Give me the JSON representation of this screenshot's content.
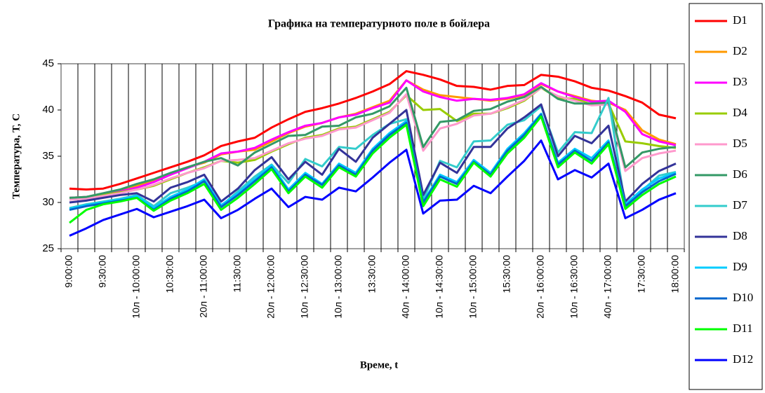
{
  "chart_data": {
    "type": "line",
    "title": "Графика на температурното поле в бойлера",
    "x_label": "Време, t",
    "y_label": "Температура, T, C",
    "categories": [
      "9:00:00",
      null,
      "9:30:00",
      null,
      "10л - 10:00:00",
      null,
      "10:30:00",
      null,
      "20л - 11:00:00",
      null,
      "11:30:00",
      null,
      "20л - 12:00:00",
      null,
      "10л - 12:30:00",
      null,
      "10л - 13:00:00",
      null,
      "13:30:00",
      null,
      "40л - 14:00:00",
      null,
      "10л - 14:30:00",
      null,
      "10л - 15:00:00",
      null,
      "15:30:00",
      null,
      "20л - 16:00:00",
      null,
      "10л - 16:30:00",
      null,
      "40л - 17:00:00",
      null,
      "17:30:00",
      null,
      "18:00:00"
    ],
    "ylim": [
      25,
      45
    ],
    "yticks": [
      25,
      30,
      35,
      40,
      45
    ],
    "series": [
      {
        "name": "D1",
        "color": "#ff0000",
        "values": [
          31.5,
          31.4,
          31.5,
          32,
          32.6,
          33.2,
          33.8,
          34.4,
          35.1,
          36.1,
          36.6,
          37,
          38.1,
          39,
          39.8,
          40.2,
          40.7,
          41.3,
          42,
          42.8,
          44.2,
          43.8,
          43.3,
          42.6,
          42.5,
          42.2,
          42.6,
          42.7,
          43.8,
          43.6,
          43.1,
          42.4,
          42.1,
          41.5,
          40.8,
          39.5,
          39.1
        ]
      },
      {
        "name": "D2",
        "color": "#ff9900",
        "values": [
          30.5,
          30.6,
          30.9,
          31.3,
          31.8,
          32.4,
          33,
          33.8,
          34.3,
          35.2,
          35.5,
          35.7,
          36.6,
          37.5,
          38.2,
          38.6,
          39.2,
          39.6,
          40.3,
          41,
          43.2,
          42.2,
          41.6,
          41.4,
          41.2,
          41,
          41.2,
          41.6,
          42.8,
          42,
          41.5,
          41,
          40.8,
          40,
          37.8,
          36.8,
          36.3
        ]
      },
      {
        "name": "D3",
        "color": "#ff00ff",
        "values": [
          30.5,
          30.6,
          30.8,
          31.2,
          31.6,
          32.2,
          33,
          33.7,
          34.4,
          35.3,
          35.5,
          35.9,
          36.8,
          37.6,
          38.3,
          38.6,
          39.2,
          39.5,
          40.2,
          40.8,
          43.2,
          42,
          41.4,
          41,
          41.2,
          41.1,
          41.3,
          41.7,
          42.9,
          42,
          41.4,
          40.9,
          41,
          39.8,
          37.4,
          36.6,
          36.2
        ]
      },
      {
        "name": "D4",
        "color": "#99cc00",
        "values": [
          30.4,
          30.5,
          30.8,
          31.1,
          31.4,
          31.8,
          32.5,
          33.2,
          33.8,
          34.5,
          34.3,
          34.6,
          35.5,
          36.3,
          37,
          37.3,
          38,
          38.2,
          39,
          39.8,
          41.6,
          40,
          40.1,
          38.8,
          39.6,
          39.6,
          40.2,
          41,
          42.4,
          41.3,
          41.2,
          40.6,
          40.7,
          36.6,
          36.4,
          36.1,
          35.9
        ]
      },
      {
        "name": "D5",
        "color": "#ff99cc",
        "values": [
          30.3,
          30.4,
          30.7,
          31,
          31.4,
          31.9,
          32.6,
          33.2,
          33.7,
          34.5,
          34.6,
          34.8,
          35.6,
          36.4,
          36.9,
          37.2,
          37.9,
          38.1,
          38.9,
          39.7,
          41.7,
          35.6,
          38,
          38.5,
          39.4,
          39.6,
          40.3,
          41.1,
          42.4,
          41.5,
          41,
          40.5,
          40.6,
          33.4,
          34.8,
          35.3,
          35.6
        ]
      },
      {
        "name": "D6",
        "color": "#339966",
        "values": [
          30.5,
          30.6,
          31,
          31.4,
          32,
          32.5,
          33.2,
          33.8,
          34.4,
          34.8,
          34,
          35.4,
          36.3,
          37.2,
          37.3,
          38.2,
          38.3,
          39.2,
          39.6,
          40.4,
          42.4,
          36,
          38.7,
          38.9,
          39.9,
          40.1,
          40.9,
          41.4,
          42.5,
          41.2,
          40.7,
          40.7,
          40.8,
          33.8,
          35.4,
          35.8,
          36
        ]
      },
      {
        "name": "D7",
        "color": "#33cccc",
        "values": [
          29.4,
          29.8,
          30.1,
          30.4,
          30.8,
          29.6,
          31,
          31.6,
          32.3,
          29.6,
          31.2,
          32.8,
          34.1,
          32.1,
          34.7,
          33.9,
          36,
          35.8,
          37.3,
          38.5,
          39,
          30.3,
          34.5,
          33.8,
          36.6,
          36.7,
          38.4,
          38.9,
          40.4,
          35.4,
          37.6,
          37.5,
          41.3,
          29.5,
          31.3,
          32.9,
          33.3
        ]
      },
      {
        "name": "D8",
        "color": "#333399",
        "values": [
          30,
          30.2,
          30.5,
          30.8,
          31,
          30.1,
          31.6,
          32.2,
          33,
          30.1,
          31.5,
          33.5,
          34.9,
          32.5,
          34.4,
          33,
          35.8,
          34.4,
          37,
          38.5,
          40,
          30.8,
          34.3,
          33.2,
          36,
          36,
          38,
          39.2,
          40.6,
          35,
          37.2,
          36.4,
          38.3,
          30.1,
          32,
          33.4,
          34.2
        ]
      },
      {
        "name": "D9",
        "color": "#00ccff",
        "values": [
          29.3,
          29.7,
          30,
          30.3,
          30.7,
          29.4,
          30.6,
          31.4,
          32.5,
          29.7,
          31,
          32.5,
          34,
          31.4,
          33.2,
          32,
          34.2,
          33.2,
          35.8,
          37.5,
          38.8,
          30.1,
          33,
          32.2,
          34.6,
          33.2,
          35.8,
          37.5,
          39.6,
          34.3,
          35.8,
          34.8,
          36.7,
          29.8,
          31.4,
          32.6,
          33.2
        ]
      },
      {
        "name": "D10",
        "color": "#0066cc",
        "values": [
          29.2,
          29.6,
          29.9,
          30.2,
          30.5,
          29.2,
          30.4,
          31.2,
          32.3,
          29.5,
          30.8,
          32.3,
          33.8,
          31.2,
          33,
          31.9,
          34,
          33,
          35.6,
          37.3,
          38.6,
          30,
          32.8,
          32,
          34.4,
          33,
          35.6,
          37.3,
          39.5,
          34.1,
          35.6,
          34.5,
          36.5,
          29.6,
          31.1,
          32.3,
          33.1
        ]
      },
      {
        "name": "D11",
        "color": "#00ff00",
        "values": [
          27.8,
          29.2,
          29.8,
          30.1,
          30.5,
          29.1,
          30.2,
          31,
          32,
          29.2,
          30.5,
          32,
          33.6,
          31,
          32.8,
          31.6,
          33.8,
          32.8,
          35.3,
          37,
          38.4,
          29.6,
          32.5,
          31.7,
          34.3,
          32.8,
          35.3,
          37,
          39.3,
          33.8,
          35.4,
          34.2,
          36.3,
          29.3,
          30.8,
          32,
          32.8
        ]
      },
      {
        "name": "D12",
        "color": "#0000ff",
        "values": [
          26.4,
          27.2,
          28.1,
          28.7,
          29.3,
          28.4,
          29,
          29.6,
          30.3,
          28.3,
          29.2,
          30.4,
          31.5,
          29.5,
          30.6,
          30.3,
          31.6,
          31.2,
          32.7,
          34.3,
          35.7,
          28.8,
          30.2,
          30.3,
          31.8,
          31,
          32.8,
          34.5,
          36.7,
          32.5,
          33.5,
          32.7,
          34.2,
          28.3,
          29.2,
          30.3,
          31
        ]
      }
    ]
  }
}
